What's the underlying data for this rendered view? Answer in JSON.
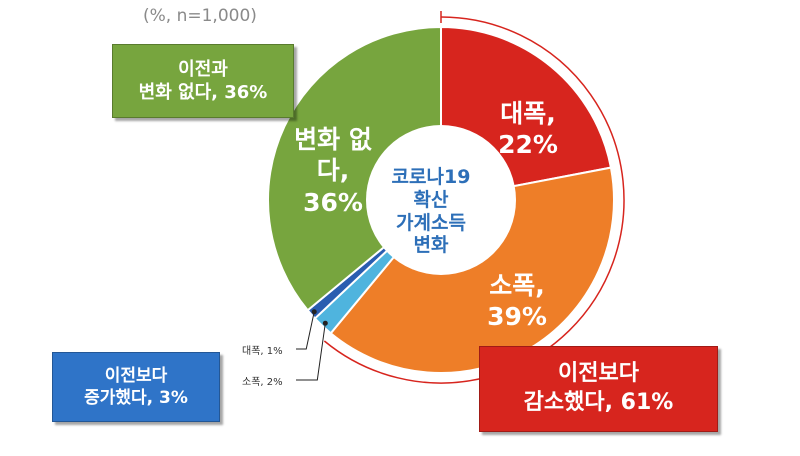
{
  "unit_note": "(%, n=1,000)",
  "center_label": [
    "코로나19",
    "확산",
    "가계소득",
    "변화"
  ],
  "callouts": {
    "same": [
      "이전과",
      "변화 없다, 36%"
    ],
    "increase": [
      "이전보다",
      "증가했다, 3%"
    ],
    "decrease": [
      "이전보다",
      "감소했다, 61%"
    ]
  },
  "chart_data": {
    "type": "pie",
    "title": "",
    "unit": "%",
    "n": "1,000",
    "slices": [
      {
        "label": "대폭,",
        "value": 22,
        "display": "22%",
        "color": "#d7251e"
      },
      {
        "label": "소폭,",
        "value": 39,
        "display": "39%",
        "color": "#ee7e28"
      },
      {
        "label": "소폭, 2%",
        "value": 2,
        "display": "2%",
        "color": "#4fb4de"
      },
      {
        "label": "대폭, 1%",
        "value": 1,
        "display": "1%",
        "color": "#2a5db0"
      },
      {
        "label": "변화 없다,",
        "value": 36,
        "display": "36%",
        "color": "#77a53e"
      }
    ],
    "groups": [
      {
        "label": "이전보다 감소했다",
        "value": 61,
        "color": "#d7251e"
      },
      {
        "label": "이전보다 증가했다",
        "value": 3,
        "color": "#2f74c8"
      },
      {
        "label": "이전과 변화 없다",
        "value": 36,
        "color": "#77a53e"
      }
    ]
  }
}
